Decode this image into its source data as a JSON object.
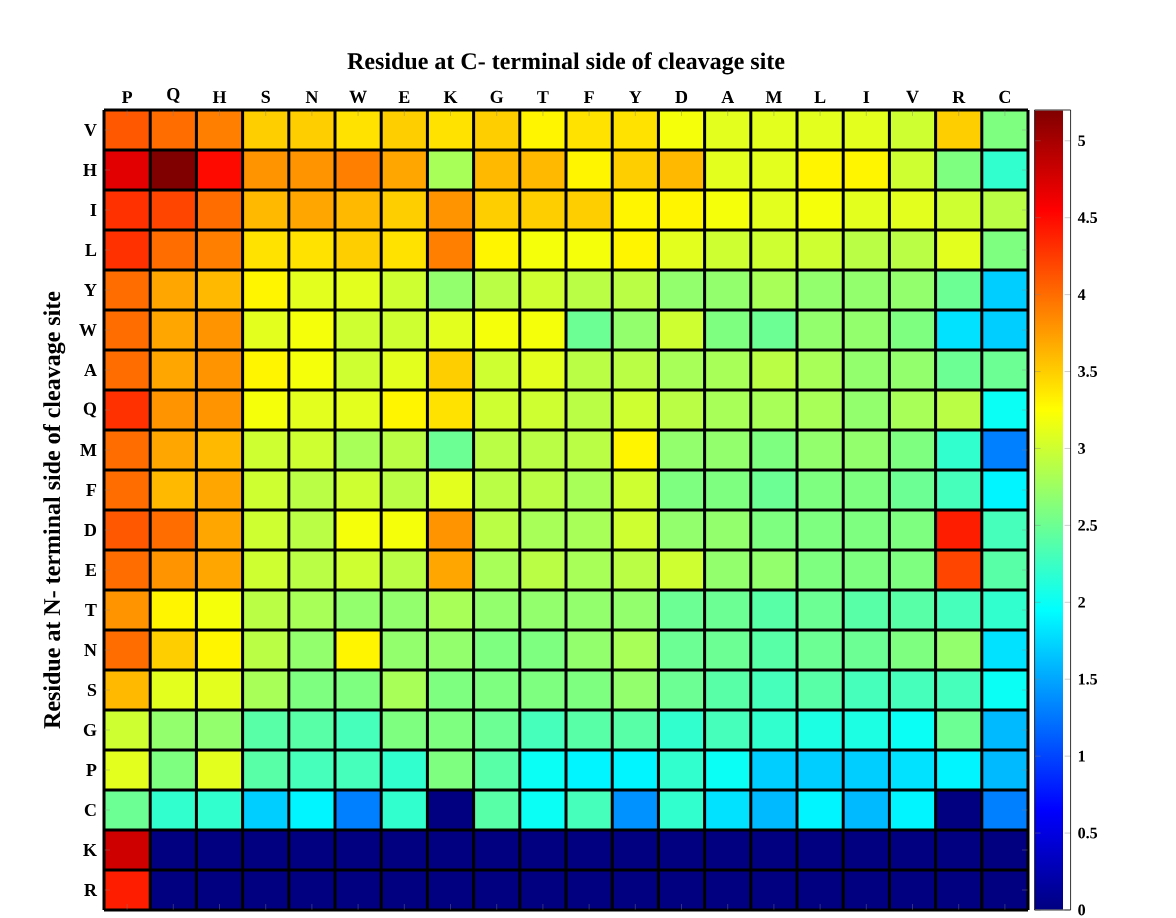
{
  "chart_data": {
    "type": "heatmap",
    "xlabel": "Residue at C- terminal side of cleavage site",
    "ylabel": "Residue at N- terminal side of cleavage site",
    "categories": [
      "P",
      "Q",
      "H",
      "S",
      "N",
      "W",
      "E",
      "K",
      "G",
      "T",
      "F",
      "Y",
      "D",
      "A",
      "M",
      "L",
      "I",
      "V",
      "R",
      "C"
    ],
    "y_categories": [
      "V",
      "H",
      "I",
      "L",
      "Y",
      "W",
      "A",
      "Q",
      "M",
      "F",
      "D",
      "E",
      "T",
      "N",
      "S",
      "G",
      "P",
      "C",
      "K",
      "R"
    ],
    "cells": [
      [
        4.1,
        4.0,
        3.9,
        3.5,
        3.5,
        3.4,
        3.5,
        3.4,
        3.5,
        3.3,
        3.4,
        3.4,
        3.2,
        3.1,
        3.1,
        3.1,
        3.1,
        3.0,
        3.5,
        2.6
      ],
      [
        4.7,
        5.2,
        4.5,
        3.8,
        3.8,
        3.9,
        3.7,
        2.8,
        3.6,
        3.6,
        3.3,
        3.5,
        3.6,
        3.1,
        3.1,
        3.3,
        3.3,
        3.0,
        2.6,
        2.2
      ],
      [
        4.3,
        4.2,
        4.0,
        3.6,
        3.7,
        3.6,
        3.5,
        3.8,
        3.5,
        3.5,
        3.5,
        3.3,
        3.3,
        3.2,
        3.1,
        3.2,
        3.1,
        3.1,
        3.0,
        2.9
      ],
      [
        4.3,
        4.0,
        3.9,
        3.4,
        3.4,
        3.5,
        3.4,
        3.9,
        3.3,
        3.2,
        3.2,
        3.3,
        3.1,
        3.0,
        3.0,
        3.0,
        2.9,
        2.9,
        3.1,
        2.6
      ],
      [
        4.0,
        3.7,
        3.6,
        3.3,
        3.1,
        3.1,
        3.0,
        2.7,
        2.9,
        3.0,
        2.9,
        2.9,
        2.7,
        2.7,
        2.8,
        2.7,
        2.7,
        2.7,
        2.5,
        1.7
      ],
      [
        4.0,
        3.7,
        3.8,
        3.1,
        3.2,
        3.0,
        3.0,
        3.1,
        3.2,
        3.2,
        2.5,
        2.7,
        3.0,
        2.6,
        2.5,
        2.7,
        2.7,
        2.6,
        1.8,
        1.7
      ],
      [
        4.0,
        3.7,
        3.8,
        3.3,
        3.2,
        3.0,
        3.1,
        3.5,
        3.0,
        3.1,
        2.9,
        2.9,
        2.8,
        2.8,
        2.9,
        2.8,
        2.7,
        2.7,
        2.5,
        2.5
      ],
      [
        4.3,
        3.8,
        3.8,
        3.2,
        3.1,
        3.1,
        3.3,
        3.4,
        3.0,
        3.0,
        2.9,
        3.0,
        2.9,
        2.8,
        2.8,
        2.8,
        2.7,
        2.8,
        2.9,
        2.0
      ],
      [
        4.0,
        3.7,
        3.6,
        3.0,
        3.0,
        2.8,
        2.9,
        2.5,
        2.9,
        2.9,
        2.9,
        3.3,
        2.7,
        2.7,
        2.6,
        2.7,
        2.7,
        2.6,
        2.2,
        1.3
      ],
      [
        4.0,
        3.6,
        3.7,
        3.0,
        2.9,
        3.0,
        2.9,
        3.1,
        2.9,
        2.9,
        2.8,
        3.0,
        2.6,
        2.6,
        2.5,
        2.6,
        2.6,
        2.5,
        2.3,
        1.9
      ],
      [
        4.1,
        4.0,
        3.7,
        3.0,
        2.9,
        3.2,
        3.2,
        3.8,
        2.9,
        2.8,
        2.8,
        3.0,
        2.7,
        2.7,
        2.6,
        2.6,
        2.6,
        2.6,
        4.4,
        2.3
      ],
      [
        4.0,
        3.8,
        3.7,
        3.0,
        2.9,
        3.0,
        2.9,
        3.7,
        2.8,
        2.9,
        2.8,
        2.9,
        3.0,
        2.7,
        2.7,
        2.6,
        2.6,
        2.6,
        4.2,
        2.4
      ],
      [
        3.8,
        3.3,
        3.2,
        2.9,
        2.8,
        2.7,
        2.7,
        2.8,
        2.7,
        2.7,
        2.7,
        2.7,
        2.5,
        2.5,
        2.4,
        2.5,
        2.4,
        2.4,
        2.3,
        2.2
      ],
      [
        4.0,
        3.5,
        3.3,
        2.9,
        2.7,
        3.3,
        2.7,
        2.7,
        2.6,
        2.6,
        2.7,
        2.8,
        2.5,
        2.5,
        2.4,
        2.5,
        2.5,
        2.6,
        2.7,
        1.8
      ],
      [
        3.6,
        3.1,
        3.1,
        2.8,
        2.6,
        2.6,
        2.8,
        2.6,
        2.6,
        2.6,
        2.6,
        2.7,
        2.5,
        2.4,
        2.3,
        2.4,
        2.3,
        2.3,
        2.3,
        2.0
      ],
      [
        3.0,
        2.7,
        2.7,
        2.4,
        2.4,
        2.3,
        2.6,
        2.6,
        2.5,
        2.3,
        2.4,
        2.4,
        2.2,
        2.3,
        2.2,
        2.1,
        2.1,
        2.0,
        2.5,
        1.6
      ],
      [
        3.1,
        2.6,
        3.1,
        2.4,
        2.3,
        2.3,
        2.2,
        2.6,
        2.4,
        2.0,
        1.9,
        1.9,
        2.2,
        2.0,
        1.7,
        1.7,
        1.7,
        1.8,
        1.9,
        1.6
      ],
      [
        2.5,
        2.2,
        2.2,
        1.7,
        1.9,
        1.3,
        2.2,
        0,
        2.4,
        2.0,
        2.3,
        1.4,
        2.2,
        1.8,
        1.6,
        1.9,
        1.6,
        1.9,
        0,
        1.3
      ],
      [
        4.8,
        0,
        0,
        0,
        0,
        0,
        0,
        0,
        0,
        0,
        0,
        0,
        0,
        0,
        0,
        0,
        0,
        0,
        0,
        0
      ],
      [
        4.4,
        0,
        0,
        0,
        0,
        0,
        0,
        0,
        0,
        0,
        0,
        0,
        0,
        0,
        0,
        0,
        0,
        0,
        0,
        0
      ]
    ],
    "grid": true,
    "clim": [
      0,
      5.2
    ],
    "cticks": [
      0,
      0.5,
      1,
      1.5,
      2,
      2.5,
      3,
      3.5,
      4,
      4.5,
      5
    ]
  }
}
